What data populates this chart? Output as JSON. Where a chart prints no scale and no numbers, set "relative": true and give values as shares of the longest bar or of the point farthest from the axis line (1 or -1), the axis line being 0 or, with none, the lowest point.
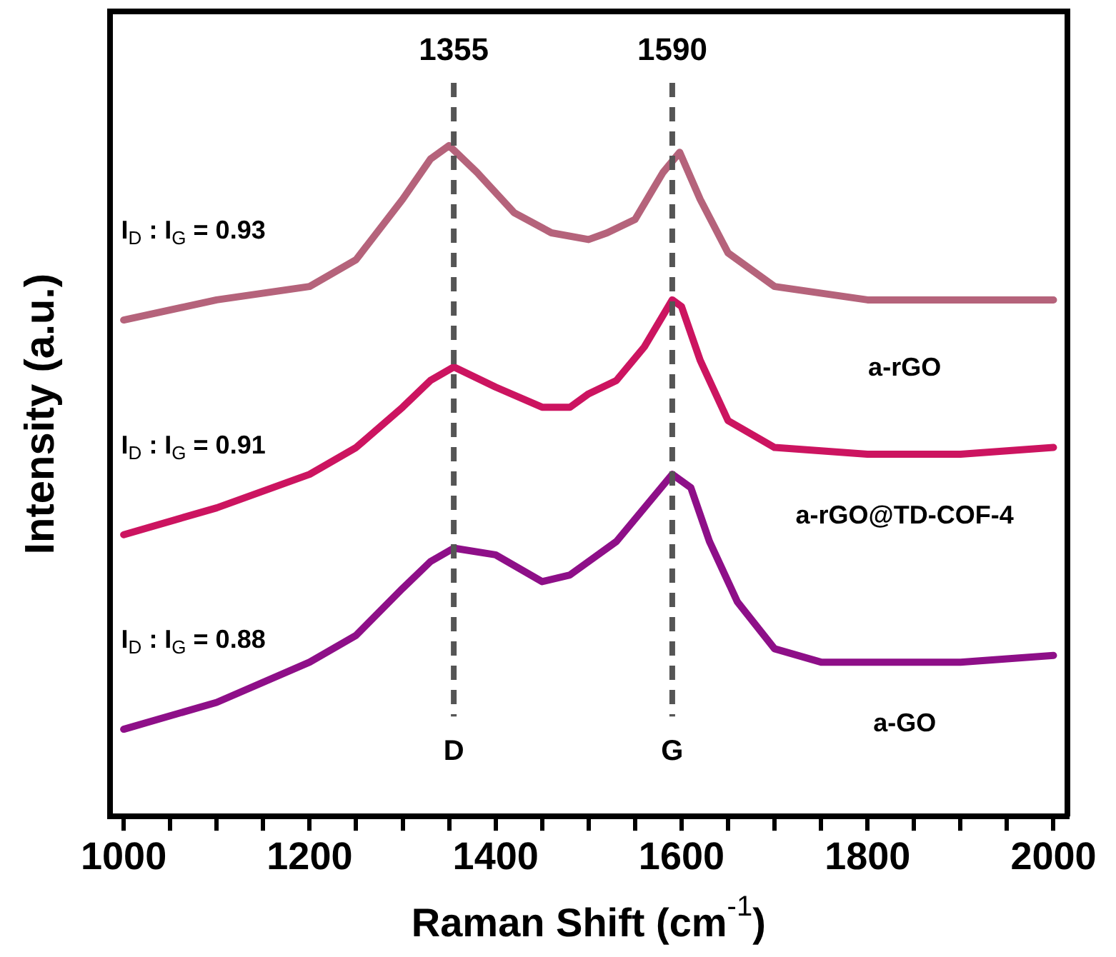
{
  "chart_data": {
    "type": "line",
    "relative": true,
    "xlabel": "Raman Shift (cm$^{-1}$)",
    "ylabel": "Intensity (a.u.)",
    "xlim": [
      985,
      2015
    ],
    "xticks": [
      1000,
      {
        "value": 1050,
        "label": null
      },
      {
        "value": 1100,
        "label": null
      },
      {
        "value": 1150,
        "label": null
      },
      1200,
      {
        "value": 1250,
        "label": null
      },
      {
        "value": 1300,
        "label": null
      },
      {
        "value": 1350,
        "label": null
      },
      1400,
      {
        "value": 1450,
        "label": null
      },
      {
        "value": 1500,
        "label": null
      },
      {
        "value": 1550,
        "label": null
      },
      1600,
      {
        "value": 1650,
        "label": null
      },
      {
        "value": 1700,
        "label": null
      },
      {
        "value": 1750,
        "label": null
      },
      1800,
      {
        "value": 1850,
        "label": null
      },
      {
        "value": 1900,
        "label": null
      },
      {
        "value": 1950,
        "label": null
      },
      2000
    ],
    "grid": false,
    "legend": false,
    "marker": "none",
    "line_style": "solid",
    "series": [
      {
        "name": "a-rGO",
        "color": "#b5637b",
        "x": [
          1000,
          1100,
          1200,
          1250,
          1300,
          1330,
          1350,
          1380,
          1420,
          1460,
          1500,
          1520,
          1550,
          1580,
          1598,
          1620,
          1650,
          1700,
          1800,
          1900,
          2000
        ],
        "values": [
          0.74,
          0.77,
          0.79,
          0.83,
          0.92,
          0.98,
          1.0,
          0.96,
          0.9,
          0.87,
          0.86,
          0.87,
          0.89,
          0.96,
          0.99,
          0.92,
          0.84,
          0.79,
          0.77,
          0.77,
          0.77
        ]
      },
      {
        "name": "a-rGO@TD-COF-4",
        "color": "#cc1460",
        "x": [
          1000,
          1100,
          1200,
          1250,
          1300,
          1330,
          1355,
          1400,
          1450,
          1480,
          1500,
          1530,
          1560,
          1590,
          1600,
          1620,
          1650,
          1700,
          1800,
          1900,
          2000
        ],
        "values": [
          0.42,
          0.46,
          0.51,
          0.55,
          0.61,
          0.65,
          0.67,
          0.64,
          0.61,
          0.61,
          0.63,
          0.65,
          0.7,
          0.77,
          0.76,
          0.68,
          0.59,
          0.55,
          0.54,
          0.54,
          0.55
        ]
      },
      {
        "name": "a-GO",
        "color": "#8e0f88",
        "x": [
          1000,
          1100,
          1200,
          1250,
          1300,
          1330,
          1355,
          1400,
          1450,
          1480,
          1500,
          1530,
          1560,
          1590,
          1610,
          1630,
          1660,
          1700,
          1750,
          1800,
          1900,
          2000
        ],
        "values": [
          0.13,
          0.17,
          0.23,
          0.27,
          0.34,
          0.38,
          0.4,
          0.39,
          0.35,
          0.36,
          0.38,
          0.41,
          0.46,
          0.51,
          0.49,
          0.41,
          0.32,
          0.25,
          0.23,
          0.23,
          0.23,
          0.24
        ]
      }
    ],
    "ref_lines": [
      {
        "axis": "x",
        "value": 1355,
        "label": "1355",
        "color": "#555555",
        "line_style": "dashed"
      },
      {
        "axis": "x",
        "value": 1590,
        "label": "1590",
        "color": "#555555",
        "line_style": "dashed"
      }
    ],
    "annotations": [
      "I$_{D}$ : I$_{G}$ = 0.93",
      "I$_{D}$ : I$_{G}$ = 0.91",
      "I$_{D}$ : I$_{G}$ = 0.88",
      "D",
      "G"
    ]
  }
}
